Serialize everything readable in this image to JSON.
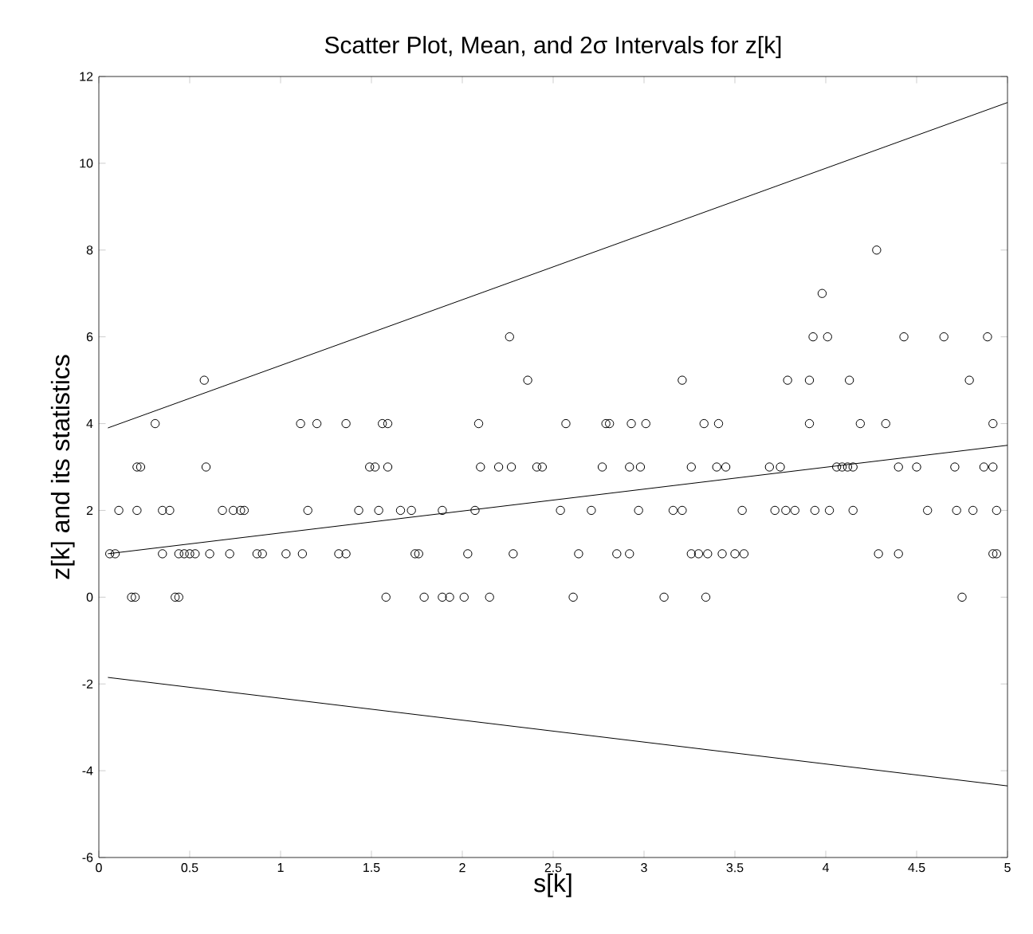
{
  "chart_data": {
    "type": "scatter",
    "title": "Scatter Plot, Mean, and 2σ Intervals for z[k]",
    "xlabel": "s[k]",
    "ylabel": "z[k] and its statistics",
    "xlim": [
      0,
      5
    ],
    "ylim": [
      -6,
      12
    ],
    "xticks": [
      0,
      0.5,
      1,
      1.5,
      2,
      2.5,
      3,
      3.5,
      4,
      4.5,
      5
    ],
    "yticks": [
      -6,
      -4,
      -2,
      0,
      2,
      4,
      6,
      8,
      10,
      12
    ],
    "series": [
      {
        "marker": "circle",
        "color": "#000000",
        "x": [
          4.28,
          3.98,
          2.26,
          3.93,
          4.01,
          4.43,
          4.65,
          4.89,
          0.58,
          2.36,
          3.21,
          3.79,
          3.91,
          4.13,
          4.79,
          0.31,
          1.11,
          1.2,
          1.36,
          1.56,
          1.59,
          2.09,
          2.57,
          2.79,
          2.81,
          2.93,
          3.01,
          3.33,
          3.41,
          3.91,
          4.19,
          4.33,
          4.92,
          0.21,
          0.23,
          0.59,
          1.49,
          1.52,
          1.59,
          2.1,
          2.2,
          2.27,
          2.41,
          2.44,
          2.77,
          2.92,
          2.98,
          3.26,
          3.4,
          3.45,
          3.69,
          3.75,
          4.06,
          4.09,
          4.12,
          4.15,
          4.4,
          4.5,
          4.71,
          4.87,
          4.92,
          0.11,
          0.21,
          0.35,
          0.39,
          0.68,
          0.74,
          0.78,
          0.8,
          1.15,
          1.43,
          1.54,
          1.66,
          1.72,
          1.89,
          2.07,
          2.54,
          2.71,
          2.97,
          3.16,
          3.21,
          3.54,
          3.72,
          3.78,
          3.83,
          3.94,
          4.02,
          4.15,
          4.56,
          4.72,
          4.81,
          4.94,
          0.06,
          0.09,
          0.35,
          0.44,
          0.47,
          0.5,
          0.53,
          0.61,
          0.72,
          0.87,
          0.9,
          1.03,
          1.12,
          1.32,
          1.36,
          1.74,
          1.76,
          2.03,
          2.28,
          2.64,
          2.85,
          2.92,
          3.26,
          3.3,
          3.35,
          3.43,
          3.5,
          3.55,
          4.29,
          4.4,
          4.92,
          4.94,
          0.18,
          0.2,
          0.42,
          0.44,
          1.58,
          1.79,
          1.89,
          1.93,
          2.01,
          2.15,
          2.61,
          3.11,
          3.34,
          4.75
        ],
        "values": [
          8,
          7,
          6,
          6,
          6,
          6,
          6,
          6,
          5,
          5,
          5,
          5,
          5,
          5,
          5,
          4,
          4,
          4,
          4,
          4,
          4,
          4,
          4,
          4,
          4,
          4,
          4,
          4,
          4,
          4,
          4,
          4,
          4,
          3,
          3,
          3,
          3,
          3,
          3,
          3,
          3,
          3,
          3,
          3,
          3,
          3,
          3,
          3,
          3,
          3,
          3,
          3,
          3,
          3,
          3,
          3,
          3,
          3,
          3,
          3,
          3,
          2,
          2,
          2,
          2,
          2,
          2,
          2,
          2,
          2,
          2,
          2,
          2,
          2,
          2,
          2,
          2,
          2,
          2,
          2,
          2,
          2,
          2,
          2,
          2,
          2,
          2,
          2,
          2,
          2,
          2,
          2,
          1,
          1,
          1,
          1,
          1,
          1,
          1,
          1,
          1,
          1,
          1,
          1,
          1,
          1,
          1,
          1,
          1,
          1,
          1,
          1,
          1,
          1,
          1,
          1,
          1,
          1,
          1,
          1,
          1,
          1,
          1,
          1,
          0,
          0,
          0,
          0,
          0,
          0,
          0,
          0,
          0,
          0,
          0,
          0,
          0,
          0
        ]
      },
      {
        "type": "line",
        "color": "#000000",
        "x": [
          0.05,
          5
        ],
        "values": [
          1.0,
          3.5
        ]
      },
      {
        "type": "line",
        "color": "#000000",
        "x": [
          0.05,
          5
        ],
        "values": [
          3.9,
          11.4
        ]
      },
      {
        "type": "line",
        "color": "#000000",
        "x": [
          0.05,
          5
        ],
        "values": [
          -1.85,
          -4.35
        ]
      }
    ]
  }
}
